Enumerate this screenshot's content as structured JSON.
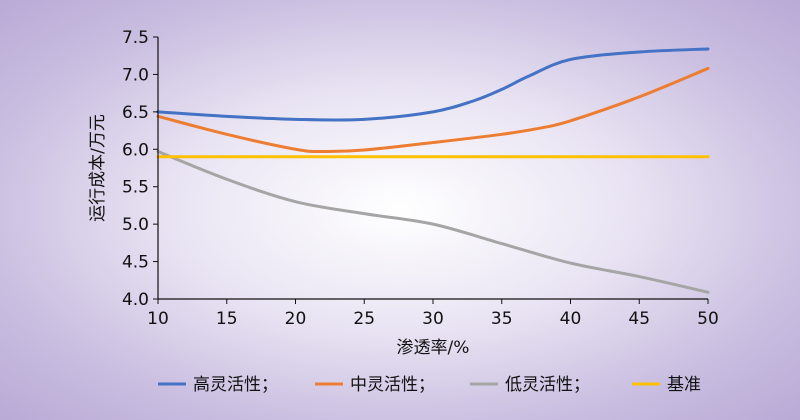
{
  "chart_data": {
    "type": "line",
    "title": "",
    "xlabel": "渗透率/%",
    "ylabel": "运行成本/万元",
    "xlim": [
      10,
      50
    ],
    "ylim": [
      4.0,
      7.5
    ],
    "x_ticks": [
      10,
      15,
      20,
      25,
      30,
      35,
      40,
      45,
      50
    ],
    "y_ticks": [
      "4.0",
      "4.5",
      "5.0",
      "5.5",
      "6.0",
      "6.5",
      "7.0",
      "7.5"
    ],
    "grid": false,
    "legend_position": "bottom",
    "series": [
      {
        "name": "高灵活性；",
        "color": "#4472c4",
        "x": [
          10,
          15,
          20,
          25,
          30,
          33,
          35,
          37,
          40,
          45,
          50
        ],
        "y": [
          6.5,
          6.44,
          6.4,
          6.4,
          6.5,
          6.65,
          6.8,
          6.98,
          7.2,
          7.3,
          7.34
        ]
      },
      {
        "name": "中灵活性；",
        "color": "#ed7d31",
        "x": [
          10,
          15,
          20,
          22,
          25,
          30,
          35,
          38,
          40,
          45,
          50
        ],
        "y": [
          6.44,
          6.2,
          6.0,
          5.97,
          5.99,
          6.09,
          6.2,
          6.29,
          6.38,
          6.7,
          7.08
        ]
      },
      {
        "name": "低灵活性；",
        "color": "#a5a5a5",
        "x": [
          10,
          15,
          20,
          25,
          30,
          35,
          40,
          45,
          50
        ],
        "y": [
          5.97,
          5.6,
          5.3,
          5.14,
          5.0,
          4.74,
          4.48,
          4.3,
          4.09
        ]
      },
      {
        "name": "基准",
        "color": "#ffc000",
        "x": [
          10,
          50
        ],
        "y": [
          5.9,
          5.9
        ]
      }
    ]
  }
}
